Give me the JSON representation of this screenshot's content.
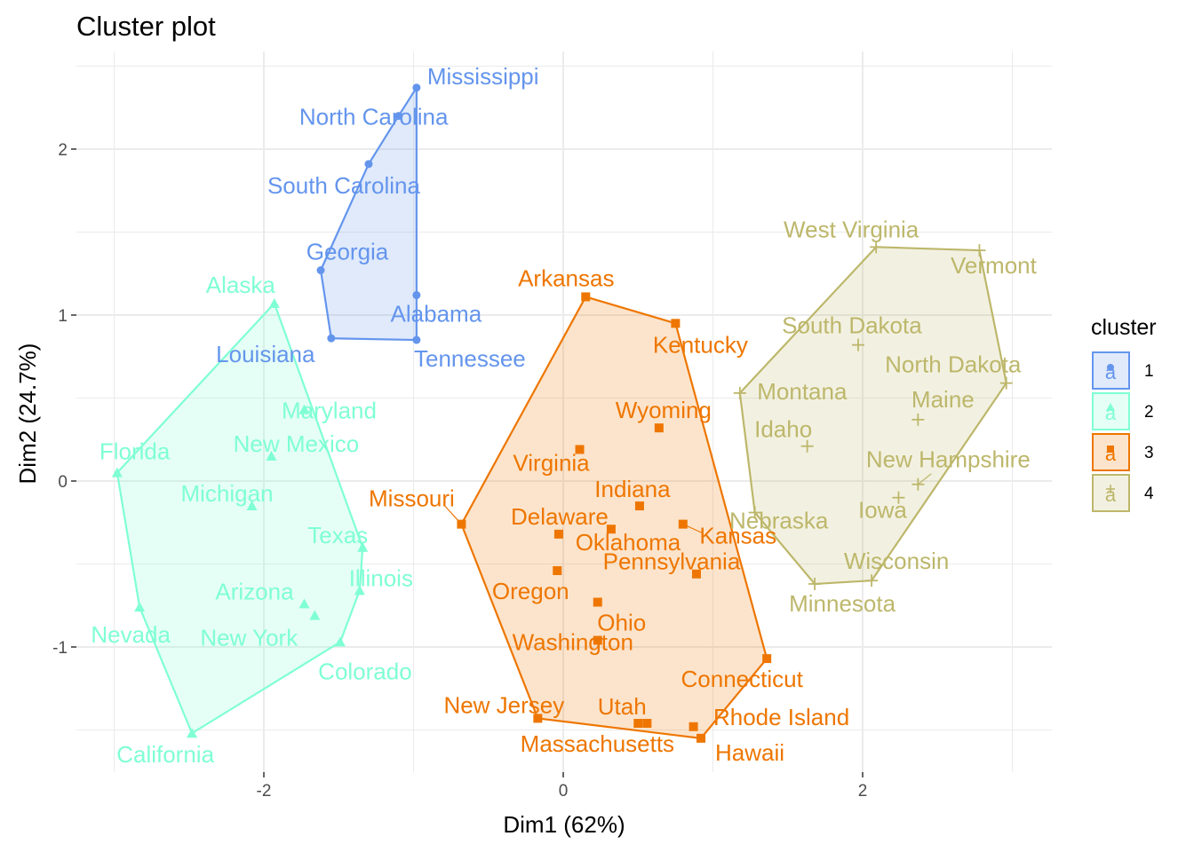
{
  "chart_data": {
    "type": "scatter",
    "title": "Cluster plot",
    "xlabel": "Dim1 (62%)",
    "ylabel": "Dim2 (24.7%)",
    "xlim": [
      -3.3,
      3.25
    ],
    "ylim": [
      -1.75,
      2.5
    ],
    "x_ticks": [
      -2,
      0,
      2
    ],
    "y_ticks": [
      -1,
      0,
      1,
      2
    ],
    "grid": true,
    "legend_title": "cluster",
    "legend_position": "right",
    "series": [
      {
        "cluster": "1",
        "color": "#6495ED",
        "marker": "circle",
        "hull": [
          "Mississippi",
          "Alabama",
          "Tennessee",
          "Louisiana",
          "Georgia",
          "South Carolina",
          "North Carolina"
        ],
        "points": [
          {
            "label": "Mississippi",
            "x": -0.98,
            "y": 2.37
          },
          {
            "label": "North Carolina",
            "x": -1.1,
            "y": 2.2
          },
          {
            "label": "South Carolina",
            "x": -1.3,
            "y": 1.91
          },
          {
            "label": "Georgia",
            "x": -1.62,
            "y": 1.27
          },
          {
            "label": "Alabama",
            "x": -0.98,
            "y": 1.12
          },
          {
            "label": "Louisiana",
            "x": -1.55,
            "y": 0.86
          },
          {
            "label": "Tennessee",
            "x": -0.98,
            "y": 0.85
          }
        ]
      },
      {
        "cluster": "2",
        "color": "#7FFFD4",
        "marker": "triangle",
        "hull": [
          "Alaska",
          "Texas",
          "Illinois",
          "Colorado",
          "California",
          "Nevada",
          "Florida"
        ],
        "points": [
          {
            "label": "Alaska",
            "x": -1.93,
            "y": 1.07
          },
          {
            "label": "Maryland",
            "x": -1.73,
            "y": 0.43
          },
          {
            "label": "New Mexico",
            "x": -1.95,
            "y": 0.15
          },
          {
            "label": "Florida",
            "x": -2.98,
            "y": 0.05
          },
          {
            "label": "Michigan",
            "x": -2.08,
            "y": -0.15
          },
          {
            "label": "Texas",
            "x": -1.34,
            "y": -0.4
          },
          {
            "label": "Illinois",
            "x": -1.36,
            "y": -0.66
          },
          {
            "label": "Arizona",
            "x": -1.73,
            "y": -0.74
          },
          {
            "label": "New York",
            "x": -1.66,
            "y": -0.81
          },
          {
            "label": "Nevada",
            "x": -2.83,
            "y": -0.76
          },
          {
            "label": "Colorado",
            "x": -1.49,
            "y": -0.97
          },
          {
            "label": "California",
            "x": -2.48,
            "y": -1.52
          }
        ]
      },
      {
        "cluster": "3",
        "color": "#EE7600",
        "marker": "square",
        "hull": [
          "Arkansas",
          "Kentucky",
          "Connecticut",
          "Hawaii",
          "New Jersey",
          "Missouri"
        ],
        "points": [
          {
            "label": "Arkansas",
            "x": 0.15,
            "y": 1.11
          },
          {
            "label": "Kentucky",
            "x": 0.75,
            "y": 0.95
          },
          {
            "label": "Wyoming",
            "x": 0.64,
            "y": 0.32
          },
          {
            "label": "Virginia",
            "x": 0.11,
            "y": 0.19
          },
          {
            "label": "Indiana",
            "x": 0.51,
            "y": -0.15
          },
          {
            "label": "Missouri",
            "x": -0.68,
            "y": -0.26
          },
          {
            "label": "Kansas",
            "x": 0.8,
            "y": -0.26
          },
          {
            "label": "Delaware",
            "x": 0.32,
            "y": -0.29
          },
          {
            "label": "Oklahoma",
            "x": -0.03,
            "y": -0.32
          },
          {
            "label": "Oregon",
            "x": -0.04,
            "y": -0.54
          },
          {
            "label": "Pennsylvania",
            "x": 0.89,
            "y": -0.56
          },
          {
            "label": "Ohio",
            "x": 0.23,
            "y": -0.73
          },
          {
            "label": "Washington",
            "x": 0.23,
            "y": -0.96
          },
          {
            "label": "Connecticut",
            "x": 1.36,
            "y": -1.07
          },
          {
            "label": "New Jersey",
            "x": -0.17,
            "y": -1.43
          },
          {
            "label": "Utah",
            "x": 0.5,
            "y": -1.46
          },
          {
            "label": "Massachusetts",
            "x": 0.56,
            "y": -1.46
          },
          {
            "label": "Rhode Island",
            "x": 0.87,
            "y": -1.48
          },
          {
            "label": "Hawaii",
            "x": 0.92,
            "y": -1.55
          }
        ]
      },
      {
        "cluster": "4",
        "color": "#BDB76B",
        "marker": "plus",
        "hull": [
          "West Virginia",
          "Vermont",
          "North Dakota",
          "Wisconsin",
          "Minnesota",
          "Nebraska",
          "Montana"
        ],
        "points": [
          {
            "label": "West Virginia",
            "x": 2.09,
            "y": 1.41
          },
          {
            "label": "Vermont",
            "x": 2.78,
            "y": 1.39
          },
          {
            "label": "South Dakota",
            "x": 1.97,
            "y": 0.82
          },
          {
            "label": "North Dakota",
            "x": 2.96,
            "y": 0.59
          },
          {
            "label": "Montana",
            "x": 1.18,
            "y": 0.53
          },
          {
            "label": "Maine",
            "x": 2.37,
            "y": 0.37
          },
          {
            "label": "Idaho",
            "x": 1.63,
            "y": 0.21
          },
          {
            "label": "New Hampshire",
            "x": 2.37,
            "y": -0.02
          },
          {
            "label": "Iowa",
            "x": 2.24,
            "y": -0.1
          },
          {
            "label": "Nebraska",
            "x": 1.28,
            "y": -0.19
          },
          {
            "label": "Wisconsin",
            "x": 2.06,
            "y": -0.6
          },
          {
            "label": "Minnesota",
            "x": 1.68,
            "y": -0.62
          }
        ]
      }
    ]
  }
}
